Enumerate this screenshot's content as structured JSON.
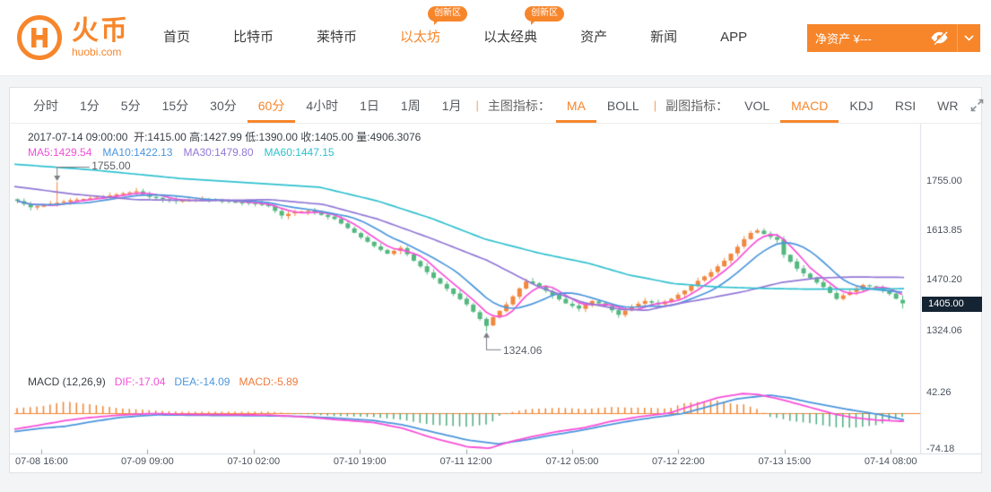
{
  "header": {
    "logo": {
      "brand": "火币",
      "domain": "huobi.com"
    },
    "nav": [
      {
        "label": "首页",
        "active": false,
        "badge": null
      },
      {
        "label": "比特币",
        "active": false,
        "badge": null
      },
      {
        "label": "莱特币",
        "active": false,
        "badge": null
      },
      {
        "label": "以太坊",
        "active": true,
        "badge": "创新区"
      },
      {
        "label": "以太经典",
        "active": false,
        "badge": "创新区"
      },
      {
        "label": "资产",
        "active": false,
        "badge": null
      },
      {
        "label": "新闻",
        "active": false,
        "badge": null
      },
      {
        "label": "APP",
        "active": false,
        "badge": null
      }
    ],
    "assets_button": {
      "label": "净资产 ¥---"
    }
  },
  "toolbar": {
    "timeframes": [
      "分时",
      "1分",
      "5分",
      "15分",
      "30分",
      "60分",
      "4小时",
      "1日",
      "1周",
      "1月"
    ],
    "active_timeframe": "60分",
    "main_indicator_label": "主图指标：",
    "main_indicators": [
      "MA",
      "BOLL"
    ],
    "active_main_indicator": "MA",
    "sub_indicator_label": "副图指标：",
    "sub_indicators": [
      "VOL",
      "MACD",
      "KDJ",
      "RSI",
      "WR"
    ],
    "active_sub_indicator": "MACD"
  },
  "chart": {
    "ohlc_info": "2017-07-14 09:00:00  开:1415.00 高:1427.99 低:1390.00 收:1405.00 量:4906.3076",
    "ma_info": [
      {
        "label": "MA5:1429.54",
        "color": "#f24fd8"
      },
      {
        "label": "MA10:1422.13",
        "color": "#4b96dc"
      },
      {
        "label": "MA30:1479.80",
        "color": "#9277d6"
      },
      {
        "label": "MA60:1447.15",
        "color": "#2ec0cf"
      }
    ],
    "y_axis_labels": [
      "1755.00",
      "1613.85",
      "1470.20",
      "1324.06"
    ],
    "current_price": "1405.00",
    "annotations": [
      {
        "text": "1755.00",
        "price": 1755.0,
        "candle_index": 6,
        "direction": "down"
      },
      {
        "text": "1324.06",
        "price": 1324.06,
        "candle_index": 71,
        "direction": "up"
      }
    ],
    "x_axis_labels": [
      "07-08 16:00",
      "07-09 09:00",
      "07-10 02:00",
      "07-10 19:00",
      "07-11 12:00",
      "07-12 05:00",
      "07-12 22:00",
      "07-13 15:00",
      "07-14 08:00"
    ],
    "macd_info": {
      "title": "MACD  (12,26,9)",
      "values": [
        {
          "label": "DIF:-17.04",
          "color": "#f24fd8"
        },
        {
          "label": "DEA:-14.09",
          "color": "#4b96dc"
        },
        {
          "label": "MACD:-5.89",
          "color": "#f0793a"
        }
      ]
    },
    "macd_y_labels": [
      "42.26",
      "-74.18"
    ],
    "series": {
      "candle_count": 135,
      "price_anchors": [
        [
          0,
          1700
        ],
        [
          2,
          1682
        ],
        [
          4,
          1688
        ],
        [
          6,
          1695
        ],
        [
          8,
          1702
        ],
        [
          12,
          1710
        ],
        [
          16,
          1722
        ],
        [
          18,
          1728
        ],
        [
          20,
          1712
        ],
        [
          24,
          1700
        ],
        [
          28,
          1705
        ],
        [
          32,
          1698
        ],
        [
          36,
          1692
        ],
        [
          38,
          1685
        ],
        [
          40,
          1658
        ],
        [
          42,
          1668
        ],
        [
          44,
          1672
        ],
        [
          46,
          1660
        ],
        [
          48,
          1648
        ],
        [
          50,
          1622
        ],
        [
          52,
          1595
        ],
        [
          54,
          1570
        ],
        [
          56,
          1548
        ],
        [
          58,
          1565
        ],
        [
          60,
          1528
        ],
        [
          62,
          1495
        ],
        [
          64,
          1462
        ],
        [
          66,
          1432
        ],
        [
          68,
          1402
        ],
        [
          70,
          1360
        ],
        [
          71,
          1340
        ],
        [
          72,
          1365
        ],
        [
          74,
          1402
        ],
        [
          76,
          1448
        ],
        [
          77,
          1468
        ],
        [
          79,
          1455
        ],
        [
          81,
          1428
        ],
        [
          83,
          1405
        ],
        [
          85,
          1390
        ],
        [
          87,
          1412
        ],
        [
          89,
          1398
        ],
        [
          91,
          1372
        ],
        [
          93,
          1396
        ],
        [
          95,
          1412
        ],
        [
          97,
          1402
        ],
        [
          99,
          1418
        ],
        [
          101,
          1442
        ],
        [
          103,
          1470
        ],
        [
          105,
          1495
        ],
        [
          107,
          1528
        ],
        [
          109,
          1568
        ],
        [
          110,
          1590
        ],
        [
          111,
          1608
        ],
        [
          112,
          1615
        ],
        [
          113,
          1605
        ],
        [
          115,
          1588
        ],
        [
          116,
          1545
        ],
        [
          118,
          1505
        ],
        [
          120,
          1478
        ],
        [
          122,
          1452
        ],
        [
          124,
          1418
        ],
        [
          126,
          1438
        ],
        [
          128,
          1458
        ],
        [
          130,
          1452
        ],
        [
          132,
          1432
        ],
        [
          134,
          1405
        ]
      ],
      "last_candle": {
        "open": 1415.0,
        "high": 1427.99,
        "low": 1390.0,
        "close": 1405.0
      },
      "ma30_anchors": [
        [
          15,
          1742
        ],
        [
          80,
          1720
        ],
        [
          150,
          1704
        ],
        [
          230,
          1701
        ],
        [
          300,
          1704
        ],
        [
          360,
          1690
        ],
        [
          420,
          1648
        ],
        [
          480,
          1592
        ],
        [
          543,
          1528
        ],
        [
          600,
          1452
        ],
        [
          650,
          1407
        ],
        [
          690,
          1388
        ],
        [
          720,
          1385
        ],
        [
          750,
          1402
        ],
        [
          790,
          1420
        ],
        [
          830,
          1440
        ],
        [
          870,
          1465
        ],
        [
          910,
          1478
        ],
        [
          950,
          1481
        ],
        [
          1008,
          1479.8
        ]
      ],
      "ma60_anchors": [
        [
          15,
          1806
        ],
        [
          100,
          1790
        ],
        [
          200,
          1765
        ],
        [
          280,
          1752
        ],
        [
          355,
          1740
        ],
        [
          420,
          1700
        ],
        [
          480,
          1650
        ],
        [
          540,
          1590
        ],
        [
          600,
          1550
        ],
        [
          656,
          1520
        ],
        [
          700,
          1487
        ],
        [
          750,
          1462
        ],
        [
          800,
          1452
        ],
        [
          850,
          1448
        ],
        [
          900,
          1446
        ],
        [
          950,
          1446
        ],
        [
          1008,
          1447.15
        ]
      ],
      "dif_anchors": [
        [
          15,
          -33
        ],
        [
          45,
          -24
        ],
        [
          72,
          -15
        ],
        [
          100,
          -9
        ],
        [
          132,
          -4
        ],
        [
          160,
          -1.5
        ],
        [
          175,
          -1
        ],
        [
          200,
          -2.5
        ],
        [
          230,
          -3
        ],
        [
          270,
          -3.5
        ],
        [
          300,
          -4
        ],
        [
          340,
          -8
        ],
        [
          372,
          -13
        ],
        [
          415,
          -19
        ],
        [
          448,
          -31
        ],
        [
          480,
          -50
        ],
        [
          520,
          -69
        ],
        [
          545,
          -72
        ],
        [
          565,
          -60
        ],
        [
          590,
          -49
        ],
        [
          620,
          -38
        ],
        [
          650,
          -30
        ],
        [
          680,
          -17
        ],
        [
          710,
          -8
        ],
        [
          730,
          -3
        ],
        [
          745,
          0
        ],
        [
          770,
          15
        ],
        [
          800,
          32
        ],
        [
          827,
          40
        ],
        [
          845,
          38
        ],
        [
          870,
          28
        ],
        [
          890,
          18
        ],
        [
          910,
          8
        ],
        [
          930,
          -2
        ],
        [
          950,
          -9
        ],
        [
          975,
          -14
        ],
        [
          1008,
          -17.04
        ]
      ],
      "dea_anchors": [
        [
          15,
          -38
        ],
        [
          45,
          -31
        ],
        [
          72,
          -27
        ],
        [
          100,
          -18
        ],
        [
          132,
          -9
        ],
        [
          160,
          -5
        ],
        [
          175,
          -3.5
        ],
        [
          200,
          -4
        ],
        [
          230,
          -4.5
        ],
        [
          270,
          -5
        ],
        [
          300,
          -5.5
        ],
        [
          340,
          -7
        ],
        [
          372,
          -10
        ],
        [
          415,
          -15
        ],
        [
          448,
          -24
        ],
        [
          480,
          -38
        ],
        [
          520,
          -55
        ],
        [
          555,
          -63
        ],
        [
          585,
          -55
        ],
        [
          615,
          -45
        ],
        [
          645,
          -36
        ],
        [
          675,
          -25
        ],
        [
          705,
          -15
        ],
        [
          735,
          -7
        ],
        [
          760,
          -1
        ],
        [
          790,
          14
        ],
        [
          820,
          29
        ],
        [
          857,
          37
        ],
        [
          880,
          31
        ],
        [
          900,
          23
        ],
        [
          920,
          16
        ],
        [
          940,
          9
        ],
        [
          960,
          3
        ],
        [
          980,
          -3
        ],
        [
          1008,
          -14.09
        ]
      ]
    }
  },
  "colors": {
    "accent": "#f7862b",
    "candle_up": "#f1873f",
    "candle_down": "#53b87f",
    "ma5": "#f94fd8",
    "ma10": "#4b96dc",
    "ma30": "#9277d6",
    "ma60": "#2ec0cf",
    "macd_pos": "#ef8532",
    "macd_neg": "#4cab7f",
    "zero_line": "#f08532",
    "axis_line": "#d9dee3",
    "tag_bg": "#152433",
    "annotation": "#7b7f84"
  }
}
